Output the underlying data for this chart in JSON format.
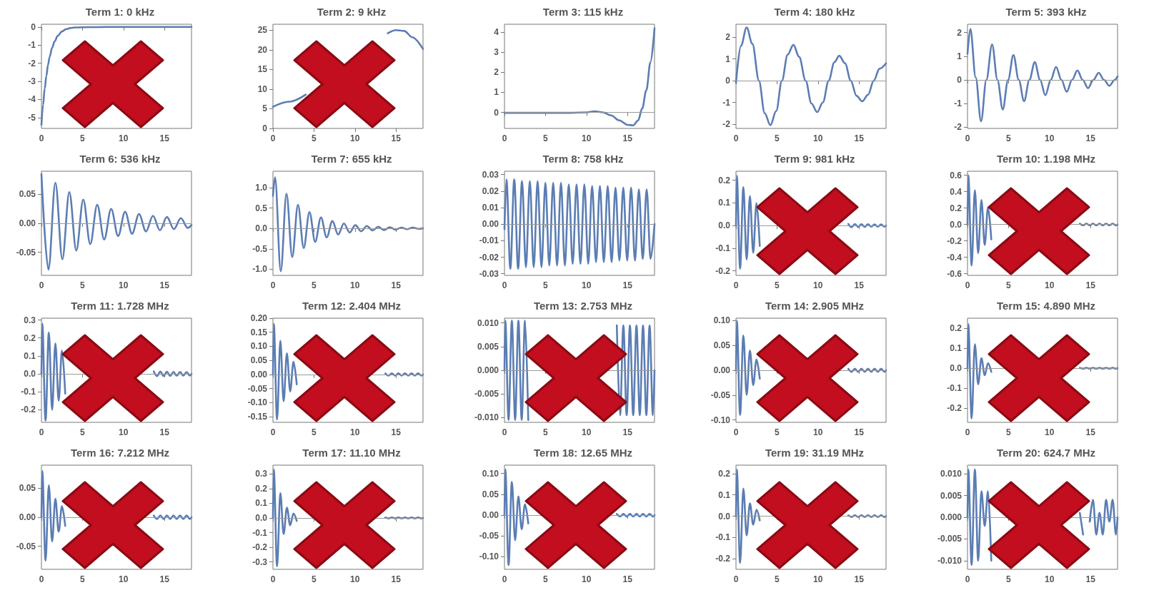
{
  "chart_data": [
    {
      "type": "line",
      "title": "Term 1: 0 kHz",
      "marker": "none",
      "xlim": [
        0,
        18.3
      ],
      "xticks": [
        0,
        5,
        10,
        15
      ],
      "ylim": [
        -5.6,
        0.15
      ],
      "yticks": [
        -5,
        -4,
        -3,
        -2,
        -1,
        0
      ],
      "x": [
        0,
        0.2,
        0.4,
        0.6,
        0.8,
        1,
        1.3,
        1.6,
        2,
        2.5,
        3,
        3.5,
        4,
        6,
        8,
        10,
        12,
        14,
        16,
        18.3
      ],
      "series": [
        {
          "color": "#5b7db3",
          "values": [
            -5.4,
            -4.3,
            -3.4,
            -2.7,
            -2.1,
            -1.65,
            -1.15,
            -0.8,
            -0.48,
            -0.25,
            -0.12,
            -0.06,
            -0.03,
            -0.01,
            0,
            0,
            0,
            0,
            0,
            0
          ]
        }
      ]
    },
    {
      "type": "line",
      "title": "Term 2: 9 kHz",
      "marker": "none",
      "xlim": [
        0,
        18.3
      ],
      "xticks": [
        0,
        5,
        10,
        15
      ],
      "ylim": [
        0,
        26.5
      ],
      "yticks": [
        0,
        5,
        10,
        15,
        20,
        25
      ],
      "x": [
        0,
        2,
        4,
        6,
        8,
        10,
        12,
        14,
        15,
        16,
        17,
        18.3
      ],
      "series": [
        {
          "color": "#5b7db3",
          "values": [
            5.5,
            6.8,
            8.6,
            null,
            null,
            null,
            null,
            24.2,
            25,
            24.8,
            23.2,
            20.2
          ]
        }
      ]
    },
    {
      "type": "line",
      "title": "Term 3: 115 kHz",
      "marker": "none",
      "xlim": [
        0,
        18.3
      ],
      "xticks": [
        0,
        5,
        10,
        15
      ],
      "ylim": [
        -0.8,
        4.4
      ],
      "yticks": [
        0,
        1,
        2,
        3,
        4
      ],
      "ref_lines": [
        {
          "axis": "y",
          "value": 0
        }
      ],
      "x": [
        0,
        2,
        4,
        6,
        8,
        10,
        11,
        12,
        13,
        14,
        15,
        15.7,
        16.3,
        16.8,
        17.3,
        17.8,
        18.3
      ],
      "series": [
        {
          "color": "#5b7db3",
          "values": [
            -0.02,
            -0.02,
            -0.02,
            -0.02,
            -0.02,
            0,
            0.05,
            0,
            -0.15,
            -0.4,
            -0.62,
            -0.65,
            -0.4,
            0.2,
            1.1,
            2.5,
            4.2
          ]
        }
      ]
    },
    {
      "type": "line",
      "title": "Term 4: 180 kHz",
      "marker": "none",
      "xlim": [
        0,
        18.3
      ],
      "xticks": [
        0,
        5,
        10,
        15
      ],
      "ylim": [
        -2.2,
        2.6
      ],
      "yticks": [
        -2,
        -1,
        0,
        1,
        2
      ],
      "ref_lines": [
        {
          "axis": "y",
          "value": 0
        }
      ],
      "x": [
        0,
        0.6,
        1.3,
        2.0,
        2.8,
        3.5,
        4.2,
        4.9,
        5.6,
        6.3,
        7.0,
        7.7,
        8.5,
        9.2,
        9.9,
        10.6,
        11.3,
        12.0,
        12.6,
        13.3,
        14.0,
        14.7,
        15.4,
        16.1,
        16.8,
        17.5,
        18.3
      ],
      "series": [
        {
          "color": "#5b7db3",
          "values": [
            -0.1,
            1.6,
            2.45,
            1.7,
            0,
            -1.5,
            -2.05,
            -1.4,
            0,
            1.2,
            1.65,
            1.1,
            0,
            -1.05,
            -1.45,
            -1.0,
            0,
            0.85,
            1.15,
            0.8,
            0,
            -0.7,
            -0.95,
            -0.65,
            0,
            0.55,
            0.8
          ]
        }
      ]
    },
    {
      "type": "line",
      "title": "Term 5: 393 kHz",
      "marker": "none",
      "xlim": [
        0,
        18.3
      ],
      "xticks": [
        0,
        5,
        10,
        15
      ],
      "ylim": [
        -2.05,
        2.35
      ],
      "yticks": [
        -2,
        -1,
        0,
        1,
        2
      ],
      "ref_lines": [
        {
          "axis": "y",
          "value": 0
        }
      ],
      "x": [
        0,
        0.35,
        1.0,
        1.65,
        2.3,
        3.0,
        3.65,
        4.3,
        4.95,
        5.6,
        6.25,
        6.9,
        7.55,
        8.2,
        8.85,
        9.5,
        10.15,
        10.8,
        11.45,
        12.1,
        12.75,
        13.4,
        14.05,
        14.7,
        15.35,
        16,
        16.65,
        17.3,
        17.95,
        18.3
      ],
      "series": [
        {
          "color": "#5b7db3",
          "values": [
            1.1,
            2.15,
            0.1,
            -1.75,
            0,
            1.5,
            0,
            -1.25,
            0,
            1.05,
            0,
            -0.9,
            0,
            0.75,
            0,
            -0.65,
            0,
            0.55,
            0,
            -0.5,
            0,
            0.4,
            0,
            -0.35,
            0,
            0.3,
            0,
            -0.25,
            0,
            0.15
          ]
        }
      ]
    },
    {
      "type": "line",
      "title": "Term 6: 536 kHz",
      "marker": "none",
      "xlim": [
        0,
        18.3
      ],
      "xticks": [
        0,
        5,
        10,
        15
      ],
      "ylim": [
        -0.09,
        0.09
      ],
      "yticks": [
        -0.05,
        {
          "value": 0,
          "label": "0.00"
        },
        0.05
      ],
      "ref_lines": [
        {
          "axis": "y",
          "value": 0
        }
      ],
      "x": [
        0,
        0.85,
        1.7,
        2.55,
        3.4,
        4.25,
        5.1,
        5.95,
        6.8,
        7.65,
        8.5,
        9.35,
        10.2,
        11.05,
        11.9,
        12.75,
        13.6,
        14.45,
        15.3,
        16.15,
        17,
        17.85,
        18.3
      ],
      "series": [
        {
          "color": "#5b7db3",
          "values": [
            0.085,
            -0.08,
            0.07,
            -0.062,
            0.054,
            -0.047,
            0.041,
            -0.036,
            0.032,
            -0.028,
            0.025,
            -0.022,
            0.02,
            -0.018,
            0.016,
            -0.014,
            0.013,
            -0.012,
            0.011,
            -0.01,
            0.009,
            -0.008,
            -0.003
          ]
        }
      ]
    },
    {
      "type": "line",
      "title": "Term 7: 655 kHz",
      "marker": "none",
      "xlim": [
        0,
        18.3
      ],
      "xticks": [
        0,
        5,
        10,
        15
      ],
      "ylim": [
        -1.15,
        1.4
      ],
      "yticks": [
        {
          "value": -1,
          "label": "-1.0"
        },
        -0.5,
        {
          "value": 0,
          "label": "0.0"
        },
        0.5,
        {
          "value": 1,
          "label": "1.0"
        }
      ],
      "ref_lines": [
        {
          "axis": "y",
          "value": 0
        }
      ],
      "x": [
        0,
        0.25,
        0.95,
        1.65,
        2.35,
        3.05,
        3.75,
        4.45,
        5.15,
        5.85,
        6.55,
        7.25,
        7.95,
        8.65,
        9.35,
        10.05,
        10.75,
        11.45,
        12.15,
        12.85,
        13.55,
        14.25,
        14.95,
        15.65,
        16.35,
        17.05,
        17.75,
        18.3
      ],
      "series": [
        {
          "color": "#5b7db3",
          "values": [
            0.8,
            1.25,
            -1.05,
            0.85,
            -0.7,
            0.58,
            -0.48,
            0.4,
            -0.33,
            0.27,
            -0.22,
            0.18,
            -0.15,
            0.12,
            -0.1,
            0.08,
            -0.07,
            0.06,
            -0.05,
            0.04,
            -0.04,
            0.03,
            -0.03,
            0.02,
            -0.02,
            0.02,
            -0.01,
            0
          ]
        }
      ]
    },
    {
      "type": "line",
      "title": "Term 8: 758 kHz",
      "marker": "none",
      "xlim": [
        0,
        18.3
      ],
      "xticks": [
        0,
        5,
        10,
        15
      ],
      "ylim": [
        -0.031,
        0.032
      ],
      "yticks": [
        -0.03,
        -0.02,
        -0.01,
        {
          "value": 0,
          "label": "0.00"
        },
        0.01,
        0.02,
        0.03
      ],
      "ref_lines": [
        {
          "axis": "y",
          "value": 0
        }
      ],
      "x": [
        0,
        0.24,
        0.715,
        1.19,
        1.665,
        2.14,
        2.615,
        3.09,
        3.565,
        4.04,
        4.515,
        4.99,
        5.465,
        5.94,
        6.415,
        6.89,
        7.365,
        7.84,
        8.315,
        8.79,
        9.265,
        9.74,
        10.215,
        10.69,
        11.165,
        11.64,
        12.115,
        12.59,
        13.065,
        13.54,
        14.015,
        14.49,
        14.965,
        15.44,
        15.915,
        16.39,
        16.865,
        17.34,
        17.815,
        18.3
      ],
      "series": [
        {
          "color": "#5b7db3",
          "values": [
            -0.003,
            0.027,
            -0.027,
            0.027,
            -0.027,
            0.026,
            -0.026,
            0.026,
            -0.026,
            0.026,
            -0.026,
            0.025,
            -0.025,
            0.025,
            -0.025,
            0.025,
            -0.025,
            0.024,
            -0.024,
            0.024,
            -0.024,
            0.024,
            -0.024,
            0.023,
            -0.023,
            0.023,
            -0.023,
            0.023,
            -0.023,
            0.022,
            -0.022,
            0.022,
            -0.022,
            0.022,
            -0.022,
            0.021,
            -0.021,
            0.021,
            -0.021,
            0
          ]
        }
      ]
    },
    {
      "type": "line",
      "title": "Term 9: 981 kHz",
      "marker": "none",
      "xlim": [
        0,
        18.3
      ],
      "xticks": [
        0,
        5,
        10,
        15
      ],
      "ylim": [
        -0.22,
        0.24
      ],
      "yticks": [
        -0.2,
        -0.1,
        {
          "value": 0,
          "label": "0.0"
        },
        0.1,
        0.2
      ],
      "ref_lines": [
        {
          "axis": "y",
          "value": 0
        }
      ],
      "x": [
        0,
        0.1,
        0.5,
        0.9,
        1.3,
        1.7,
        2.1,
        2.5,
        2.9,
        3.3,
        3.7,
        4.1,
        4.5,
        4.9,
        5.3,
        5.7,
        6.1,
        6.5,
        6.9,
        7.3,
        7.7,
        8.1,
        8.5,
        8.9,
        9.3,
        9.7,
        10.1,
        10.5,
        10.9,
        11.3,
        11.7,
        12.1,
        12.5,
        12.9,
        13.3,
        13.7,
        14.1,
        14.5,
        14.9,
        15.3,
        15.7,
        16.1,
        16.5,
        16.9,
        17.3,
        17.7,
        18.1,
        18.3
      ],
      "series": [
        {
          "color": "#5b7db3",
          "values": [
            0,
            0.22,
            -0.19,
            0.17,
            -0.15,
            0.13,
            -0.12,
            0.1,
            -0.09,
            null,
            null,
            null,
            null,
            null,
            null,
            null,
            null,
            null,
            null,
            null,
            null,
            null,
            null,
            null,
            null,
            null,
            null,
            null,
            null,
            null,
            null,
            null,
            null,
            null,
            null,
            0.007,
            -0.007,
            0.007,
            -0.006,
            0.006,
            -0.006,
            0.006,
            -0.005,
            0.005,
            -0.005,
            0.005,
            -0.005,
            0
          ]
        }
      ]
    },
    {
      "type": "line",
      "title": "Term 10: 1.198 MHz",
      "marker": "none",
      "xlim": [
        0,
        18.3
      ],
      "xticks": [
        0,
        5,
        10,
        15
      ],
      "ylim": [
        -0.62,
        0.65
      ],
      "yticks": [
        -0.6,
        -0.4,
        -0.2,
        {
          "value": 0,
          "label": "0.0"
        },
        0.2,
        0.4,
        0.6
      ],
      "ref_lines": [
        {
          "axis": "y",
          "value": 0
        }
      ],
      "x": [
        0,
        0.1,
        0.5,
        0.9,
        1.3,
        1.7,
        2.1,
        2.5,
        2.9,
        3.3,
        3.7,
        4.1,
        4.5,
        4.9,
        5.3,
        5.7,
        6.1,
        6.5,
        6.9,
        7.3,
        7.7,
        8.1,
        8.5,
        8.9,
        9.3,
        9.7,
        10.1,
        10.5,
        10.9,
        11.3,
        11.7,
        12.1,
        12.5,
        12.9,
        13.3,
        13.7,
        14.1,
        14.5,
        14.9,
        15.3,
        15.7,
        16.1,
        16.5,
        16.9,
        17.3,
        17.7,
        18.1,
        18.3
      ],
      "series": [
        {
          "color": "#5b7db3",
          "values": [
            0,
            0.6,
            -0.5,
            0.42,
            -0.35,
            0.3,
            -0.25,
            0.21,
            -0.18,
            null,
            null,
            null,
            null,
            null,
            null,
            null,
            null,
            null,
            null,
            null,
            null,
            null,
            null,
            null,
            null,
            null,
            null,
            null,
            null,
            null,
            null,
            null,
            null,
            null,
            null,
            0.01,
            -0.01,
            0.01,
            -0.01,
            0.01,
            -0.01,
            0.01,
            -0.01,
            0.01,
            -0.01,
            0.01,
            -0.01,
            0
          ]
        }
      ]
    },
    {
      "type": "line",
      "title": "Term 11: 1.728 MHz",
      "marker": "none",
      "xlim": [
        0,
        18.3
      ],
      "xticks": [
        0,
        5,
        10,
        15
      ],
      "ylim": [
        -0.27,
        0.31
      ],
      "yticks": [
        -0.2,
        -0.1,
        {
          "value": 0,
          "label": "0.0"
        },
        0.1,
        0.2,
        0.3
      ],
      "ref_lines": [
        {
          "axis": "y",
          "value": 0
        }
      ],
      "x": [
        0,
        0.1,
        0.5,
        0.9,
        1.3,
        1.7,
        2.1,
        2.5,
        2.9,
        3.3,
        3.7,
        4.1,
        4.5,
        4.9,
        5.3,
        5.7,
        6.1,
        6.5,
        6.9,
        7.3,
        7.7,
        8.1,
        8.5,
        8.9,
        9.3,
        9.7,
        10.1,
        10.5,
        10.9,
        11.3,
        11.7,
        12.1,
        12.5,
        12.9,
        13.3,
        13.7,
        14.1,
        14.5,
        14.9,
        15.3,
        15.7,
        16.1,
        16.5,
        16.9,
        17.3,
        17.7,
        18.1,
        18.3
      ],
      "series": [
        {
          "color": "#5b7db3",
          "values": [
            0,
            0.28,
            -0.26,
            0.23,
            -0.2,
            0.17,
            -0.15,
            0.13,
            -0.11,
            null,
            null,
            null,
            null,
            null,
            null,
            null,
            null,
            null,
            null,
            null,
            null,
            null,
            null,
            null,
            null,
            null,
            null,
            null,
            null,
            null,
            null,
            null,
            null,
            null,
            null,
            0.014,
            -0.013,
            0.013,
            -0.012,
            0.012,
            -0.012,
            0.011,
            -0.011,
            0.011,
            -0.01,
            0.01,
            -0.01,
            0
          ]
        }
      ]
    },
    {
      "type": "line",
      "title": "Term 12: 2.404 MHz",
      "marker": "none",
      "xlim": [
        0,
        18.3
      ],
      "xticks": [
        0,
        5,
        10,
        15
      ],
      "ylim": [
        -0.17,
        0.2
      ],
      "yticks": [
        -0.15,
        {
          "value": -0.1,
          "label": "-0.10"
        },
        -0.05,
        {
          "value": 0,
          "label": "0.00"
        },
        0.05,
        {
          "value": 0.1,
          "label": "0.10"
        },
        0.15,
        {
          "value": 0.2,
          "label": "0.20"
        }
      ],
      "ref_lines": [
        {
          "axis": "y",
          "value": 0
        }
      ],
      "x": [
        0,
        0.1,
        0.5,
        0.9,
        1.3,
        1.7,
        2.1,
        2.5,
        2.9,
        3.3,
        3.7,
        4.1,
        4.5,
        4.9,
        5.3,
        5.7,
        6.1,
        6.5,
        6.9,
        7.3,
        7.7,
        8.1,
        8.5,
        8.9,
        9.3,
        9.7,
        10.1,
        10.5,
        10.9,
        11.3,
        11.7,
        12.1,
        12.5,
        12.9,
        13.3,
        13.7,
        14.1,
        14.5,
        14.9,
        15.3,
        15.7,
        16.1,
        16.5,
        16.9,
        17.3,
        17.7,
        18.1,
        18.3
      ],
      "series": [
        {
          "color": "#5b7db3",
          "values": [
            0,
            0.18,
            -0.16,
            0.12,
            -0.095,
            0.075,
            -0.06,
            0.045,
            -0.035,
            null,
            null,
            null,
            null,
            null,
            null,
            null,
            null,
            null,
            null,
            null,
            null,
            null,
            null,
            null,
            null,
            null,
            null,
            null,
            null,
            null,
            null,
            null,
            null,
            null,
            null,
            0.004,
            -0.004,
            0.004,
            -0.004,
            0.004,
            -0.004,
            0.004,
            -0.004,
            0.004,
            -0.004,
            0.004,
            -0.004,
            0
          ]
        }
      ]
    },
    {
      "type": "line",
      "title": "Term 13: 2.753 MHz",
      "marker": "none",
      "xlim": [
        0,
        18.3
      ],
      "xticks": [
        0,
        5,
        10,
        15
      ],
      "ylim": [
        -0.011,
        0.011
      ],
      "yticks": [
        {
          "value": -0.01,
          "label": "-0.010"
        },
        -0.005,
        {
          "value": 0,
          "label": "0.000"
        },
        0.005,
        {
          "value": 0.01,
          "label": "0.010"
        }
      ],
      "ref_lines": [
        {
          "axis": "y",
          "value": 0
        }
      ],
      "x": [
        0,
        0.1,
        0.5,
        0.9,
        1.3,
        1.7,
        2.1,
        2.5,
        2.9,
        3.3,
        3.7,
        4.1,
        4.5,
        4.9,
        5.3,
        5.7,
        6.1,
        6.5,
        6.9,
        7.3,
        7.7,
        8.1,
        8.5,
        8.9,
        9.3,
        9.7,
        10.1,
        10.5,
        10.9,
        11.3,
        11.7,
        12.1,
        12.5,
        12.9,
        13.3,
        13.7,
        14.1,
        14.5,
        14.9,
        15.3,
        15.7,
        16.1,
        16.5,
        16.9,
        17.3,
        17.7,
        18.1,
        18.3
      ],
      "series": [
        {
          "color": "#5b7db3",
          "values": [
            0,
            0.0105,
            -0.0105,
            0.0105,
            -0.0105,
            0.0105,
            -0.0105,
            0.0105,
            -0.0105,
            null,
            null,
            null,
            null,
            null,
            null,
            null,
            null,
            null,
            null,
            null,
            null,
            null,
            null,
            null,
            null,
            null,
            null,
            null,
            null,
            null,
            null,
            null,
            null,
            null,
            null,
            0.0095,
            -0.0095,
            0.0095,
            -0.0095,
            0.0095,
            -0.0095,
            0.0095,
            -0.0095,
            0.0095,
            -0.0095,
            0.0095,
            -0.0095,
            0
          ]
        }
      ]
    },
    {
      "type": "line",
      "title": "Term 14: 2.905 MHz",
      "marker": "none",
      "xlim": [
        0,
        18.3
      ],
      "xticks": [
        0,
        5,
        10,
        15
      ],
      "ylim": [
        -0.105,
        0.105
      ],
      "yticks": [
        {
          "value": -0.1,
          "label": "-0.10"
        },
        -0.05,
        {
          "value": 0,
          "label": "0.00"
        },
        0.05,
        {
          "value": 0.1,
          "label": "0.10"
        }
      ],
      "ref_lines": [
        {
          "axis": "y",
          "value": 0
        }
      ],
      "x": [
        0,
        0.1,
        0.5,
        0.9,
        1.3,
        1.7,
        2.1,
        2.5,
        2.9,
        3.3,
        3.7,
        4.1,
        4.5,
        4.9,
        5.3,
        5.7,
        6.1,
        6.5,
        6.9,
        7.3,
        7.7,
        8.1,
        8.5,
        8.9,
        9.3,
        9.7,
        10.1,
        10.5,
        10.9,
        11.3,
        11.7,
        12.1,
        12.5,
        12.9,
        13.3,
        13.7,
        14.1,
        14.5,
        14.9,
        15.3,
        15.7,
        16.1,
        16.5,
        16.9,
        17.3,
        17.7,
        18.1,
        18.3
      ],
      "series": [
        {
          "color": "#5b7db3",
          "values": [
            0,
            0.1,
            -0.09,
            0.07,
            -0.05,
            0.04,
            -0.03,
            0.022,
            -0.017,
            null,
            null,
            null,
            null,
            null,
            null,
            null,
            null,
            null,
            null,
            null,
            null,
            null,
            null,
            null,
            null,
            null,
            null,
            null,
            null,
            null,
            null,
            null,
            null,
            null,
            null,
            0.003,
            -0.003,
            0.003,
            -0.003,
            0.003,
            -0.003,
            0.003,
            -0.003,
            0.003,
            -0.003,
            0.003,
            -0.003,
            0
          ]
        }
      ]
    },
    {
      "type": "line",
      "title": "Term 15: 4.890 MHz",
      "marker": "none",
      "xlim": [
        0,
        18.3
      ],
      "xticks": [
        0,
        5,
        10,
        15
      ],
      "ylim": [
        -0.27,
        0.25
      ],
      "yticks": [
        -0.2,
        -0.1,
        {
          "value": 0,
          "label": "0.0"
        },
        0.1,
        0.2
      ],
      "ref_lines": [
        {
          "axis": "y",
          "value": 0
        }
      ],
      "x": [
        0,
        0.1,
        0.5,
        0.9,
        1.3,
        1.7,
        2.1,
        2.5,
        2.9,
        3.3,
        3.7,
        4.1,
        4.5,
        4.9,
        5.3,
        5.7,
        6.1,
        6.5,
        6.9,
        7.3,
        7.7,
        8.1,
        8.5,
        8.9,
        9.3,
        9.7,
        10.1,
        10.5,
        10.9,
        11.3,
        11.7,
        12.1,
        12.5,
        12.9,
        13.3,
        13.7,
        14.1,
        14.5,
        14.9,
        15.3,
        15.7,
        16.1,
        16.5,
        16.9,
        17.3,
        17.7,
        18.1,
        18.3
      ],
      "series": [
        {
          "color": "#5b7db3",
          "values": [
            0,
            0.22,
            -0.25,
            0.12,
            -0.08,
            0.05,
            -0.035,
            0.025,
            -0.018,
            null,
            null,
            null,
            null,
            null,
            null,
            null,
            null,
            null,
            null,
            null,
            null,
            null,
            null,
            null,
            null,
            null,
            null,
            null,
            null,
            null,
            null,
            null,
            null,
            null,
            null,
            0.002,
            -0.002,
            0.002,
            -0.002,
            0.002,
            -0.002,
            0.002,
            -0.002,
            0.002,
            -0.002,
            0.002,
            -0.002,
            0
          ]
        }
      ]
    },
    {
      "type": "line",
      "title": "Term 16: 7.212 MHz",
      "marker": "none",
      "xlim": [
        0,
        18.3
      ],
      "xticks": [
        0,
        5,
        10,
        15
      ],
      "ylim": [
        -0.09,
        0.09
      ],
      "yticks": [
        -0.05,
        {
          "value": 0,
          "label": "0.00"
        },
        0.05
      ],
      "ref_lines": [
        {
          "axis": "y",
          "value": 0
        }
      ],
      "x": [
        0,
        0.1,
        0.5,
        0.9,
        1.3,
        1.7,
        2.1,
        2.5,
        2.9,
        3.3,
        3.7,
        4.1,
        4.5,
        4.9,
        5.3,
        5.7,
        6.1,
        6.5,
        6.9,
        7.3,
        7.7,
        8.1,
        8.5,
        8.9,
        9.3,
        9.7,
        10.1,
        10.5,
        10.9,
        11.3,
        11.7,
        12.1,
        12.5,
        12.9,
        13.3,
        13.7,
        14.1,
        14.5,
        14.9,
        15.3,
        15.7,
        16.1,
        16.5,
        16.9,
        17.3,
        17.7,
        18.1,
        18.3
      ],
      "series": [
        {
          "color": "#5b7db3",
          "values": [
            0,
            0.08,
            -0.075,
            0.055,
            -0.042,
            0.032,
            -0.025,
            0.019,
            -0.015,
            null,
            null,
            null,
            null,
            null,
            null,
            null,
            null,
            null,
            null,
            null,
            null,
            null,
            null,
            null,
            null,
            null,
            null,
            null,
            null,
            null,
            null,
            null,
            null,
            null,
            null,
            0.003,
            -0.003,
            0.003,
            -0.003,
            0.003,
            -0.003,
            0.003,
            -0.003,
            0.003,
            -0.003,
            0.003,
            -0.003,
            0
          ]
        }
      ]
    },
    {
      "type": "line",
      "title": "Term 17: 11.10 MHz",
      "marker": "none",
      "xlim": [
        0,
        18.3
      ],
      "xticks": [
        0,
        5,
        10,
        15
      ],
      "ylim": [
        -0.35,
        0.36
      ],
      "yticks": [
        -0.3,
        -0.2,
        -0.1,
        {
          "value": 0,
          "label": "0.0"
        },
        0.1,
        0.2,
        0.3
      ],
      "ref_lines": [
        {
          "axis": "y",
          "value": 0
        }
      ],
      "x": [
        0,
        0.1,
        0.5,
        0.9,
        1.3,
        1.7,
        2.1,
        2.5,
        2.9,
        3.3,
        3.7,
        4.1,
        4.5,
        4.9,
        5.3,
        5.7,
        6.1,
        6.5,
        6.9,
        7.3,
        7.7,
        8.1,
        8.5,
        8.9,
        9.3,
        9.7,
        10.1,
        10.5,
        10.9,
        11.3,
        11.7,
        12.1,
        12.5,
        12.9,
        13.3,
        13.7,
        14.1,
        14.5,
        14.9,
        15.3,
        15.7,
        16.1,
        16.5,
        16.9,
        17.3,
        17.7,
        18.1,
        18.3
      ],
      "series": [
        {
          "color": "#5b7db3",
          "values": [
            0,
            0.33,
            -0.33,
            0.17,
            -0.11,
            0.07,
            -0.05,
            0.03,
            -0.02,
            null,
            null,
            null,
            null,
            null,
            null,
            null,
            null,
            null,
            null,
            null,
            null,
            null,
            null,
            null,
            null,
            null,
            null,
            null,
            null,
            null,
            null,
            null,
            null,
            null,
            null,
            0.003,
            -0.003,
            0.003,
            -0.003,
            0.003,
            -0.003,
            0.003,
            -0.003,
            0.003,
            -0.003,
            0.003,
            -0.003,
            0
          ]
        }
      ]
    },
    {
      "type": "line",
      "title": "Term 18: 12.65 MHz",
      "marker": "none",
      "xlim": [
        0,
        18.3
      ],
      "xticks": [
        0,
        5,
        10,
        15
      ],
      "ylim": [
        -0.13,
        0.12
      ],
      "yticks": [
        {
          "value": -0.1,
          "label": "-0.10"
        },
        -0.05,
        {
          "value": 0,
          "label": "0.00"
        },
        0.05,
        {
          "value": 0.1,
          "label": "0.10"
        }
      ],
      "ref_lines": [
        {
          "axis": "y",
          "value": 0
        }
      ],
      "x": [
        0,
        0.1,
        0.5,
        0.9,
        1.3,
        1.7,
        2.1,
        2.5,
        2.9,
        3.3,
        3.7,
        4.1,
        4.5,
        4.9,
        5.3,
        5.7,
        6.1,
        6.5,
        6.9,
        7.3,
        7.7,
        8.1,
        8.5,
        8.9,
        9.3,
        9.7,
        10.1,
        10.5,
        10.9,
        11.3,
        11.7,
        12.1,
        12.5,
        12.9,
        13.3,
        13.7,
        14.1,
        14.5,
        14.9,
        15.3,
        15.7,
        16.1,
        16.5,
        16.9,
        17.3,
        17.7,
        18.1,
        18.3
      ],
      "series": [
        {
          "color": "#5b7db3",
          "values": [
            0,
            0.11,
            -0.12,
            0.08,
            -0.06,
            0.045,
            -0.034,
            0.026,
            -0.02,
            null,
            null,
            null,
            null,
            null,
            null,
            null,
            null,
            null,
            null,
            null,
            null,
            null,
            null,
            null,
            null,
            null,
            null,
            null,
            null,
            null,
            null,
            null,
            null,
            null,
            null,
            0.003,
            -0.003,
            0.003,
            -0.003,
            0.003,
            -0.003,
            0.003,
            -0.003,
            0.003,
            -0.003,
            0.003,
            -0.003,
            0
          ]
        }
      ]
    },
    {
      "type": "line",
      "title": "Term 19: 31.19 MHz",
      "marker": "none",
      "xlim": [
        0,
        18.3
      ],
      "xticks": [
        0,
        5,
        10,
        15
      ],
      "ylim": [
        -0.25,
        0.24
      ],
      "yticks": [
        -0.2,
        -0.1,
        {
          "value": 0,
          "label": "0.0"
        },
        0.1,
        0.2
      ],
      "ref_lines": [
        {
          "axis": "y",
          "value": 0
        }
      ],
      "x": [
        0,
        0.1,
        0.5,
        0.9,
        1.3,
        1.7,
        2.1,
        2.5,
        2.9,
        3.3,
        3.7,
        4.1,
        4.5,
        4.9,
        5.3,
        5.7,
        6.1,
        6.5,
        6.9,
        7.3,
        7.7,
        8.1,
        8.5,
        8.9,
        9.3,
        9.7,
        10.1,
        10.5,
        10.9,
        11.3,
        11.7,
        12.1,
        12.5,
        12.9,
        13.3,
        13.7,
        14.1,
        14.5,
        14.9,
        15.3,
        15.7,
        16.1,
        16.5,
        16.9,
        17.3,
        17.7,
        18.1,
        18.3
      ],
      "series": [
        {
          "color": "#5b7db3",
          "values": [
            0,
            0.22,
            -0.22,
            0.13,
            -0.09,
            0.06,
            -0.04,
            0.03,
            -0.02,
            null,
            null,
            null,
            null,
            null,
            null,
            null,
            null,
            null,
            null,
            null,
            null,
            null,
            null,
            null,
            null,
            null,
            null,
            null,
            null,
            null,
            null,
            null,
            null,
            null,
            null,
            0.004,
            -0.004,
            0.004,
            -0.004,
            0.004,
            -0.004,
            0.004,
            -0.004,
            0.004,
            -0.004,
            0.004,
            -0.004,
            0
          ]
        }
      ]
    },
    {
      "type": "line",
      "title": "Term 20: 624.7 MHz",
      "marker": "none",
      "xlim": [
        0,
        18.3
      ],
      "xticks": [
        0,
        5,
        10,
        15
      ],
      "ylim": [
        -0.012,
        0.012
      ],
      "yticks": [
        {
          "value": -0.01,
          "label": "-0.010"
        },
        -0.005,
        {
          "value": 0,
          "label": "0.000"
        },
        0.005,
        {
          "value": 0.01,
          "label": "0.010"
        }
      ],
      "ref_lines": [
        {
          "axis": "y",
          "value": 0
        }
      ],
      "x": [
        0,
        0.1,
        0.5,
        0.9,
        1.3,
        1.7,
        2.1,
        2.5,
        2.9,
        3.3,
        3.7,
        4.1,
        4.5,
        4.9,
        5.3,
        5.7,
        6.1,
        6.5,
        6.9,
        7.3,
        7.7,
        8.1,
        8.5,
        8.9,
        9.3,
        9.7,
        10.1,
        10.5,
        10.9,
        11.3,
        11.7,
        12.1,
        12.5,
        12.9,
        13.3,
        13.7,
        14.1,
        14.5,
        14.9,
        15.3,
        15.7,
        16.1,
        16.5,
        16.9,
        17.3,
        17.7,
        18.1,
        18.3
      ],
      "series": [
        {
          "color": "#5b7db3",
          "values": [
            0,
            0.011,
            -0.011,
            0.011,
            -0.01,
            0.006,
            -0.002,
            0.006,
            -0.01,
            null,
            null,
            null,
            null,
            null,
            null,
            null,
            null,
            null,
            null,
            null,
            null,
            null,
            null,
            null,
            null,
            null,
            null,
            null,
            null,
            null,
            null,
            null,
            null,
            null,
            null,
            0.001,
            -0.004,
            null,
            -0.001,
            0.004,
            -0.004,
            0.001,
            -0.004,
            0.004,
            -0.001,
            0.004,
            -0.004,
            0
          ]
        }
      ]
    }
  ]
}
